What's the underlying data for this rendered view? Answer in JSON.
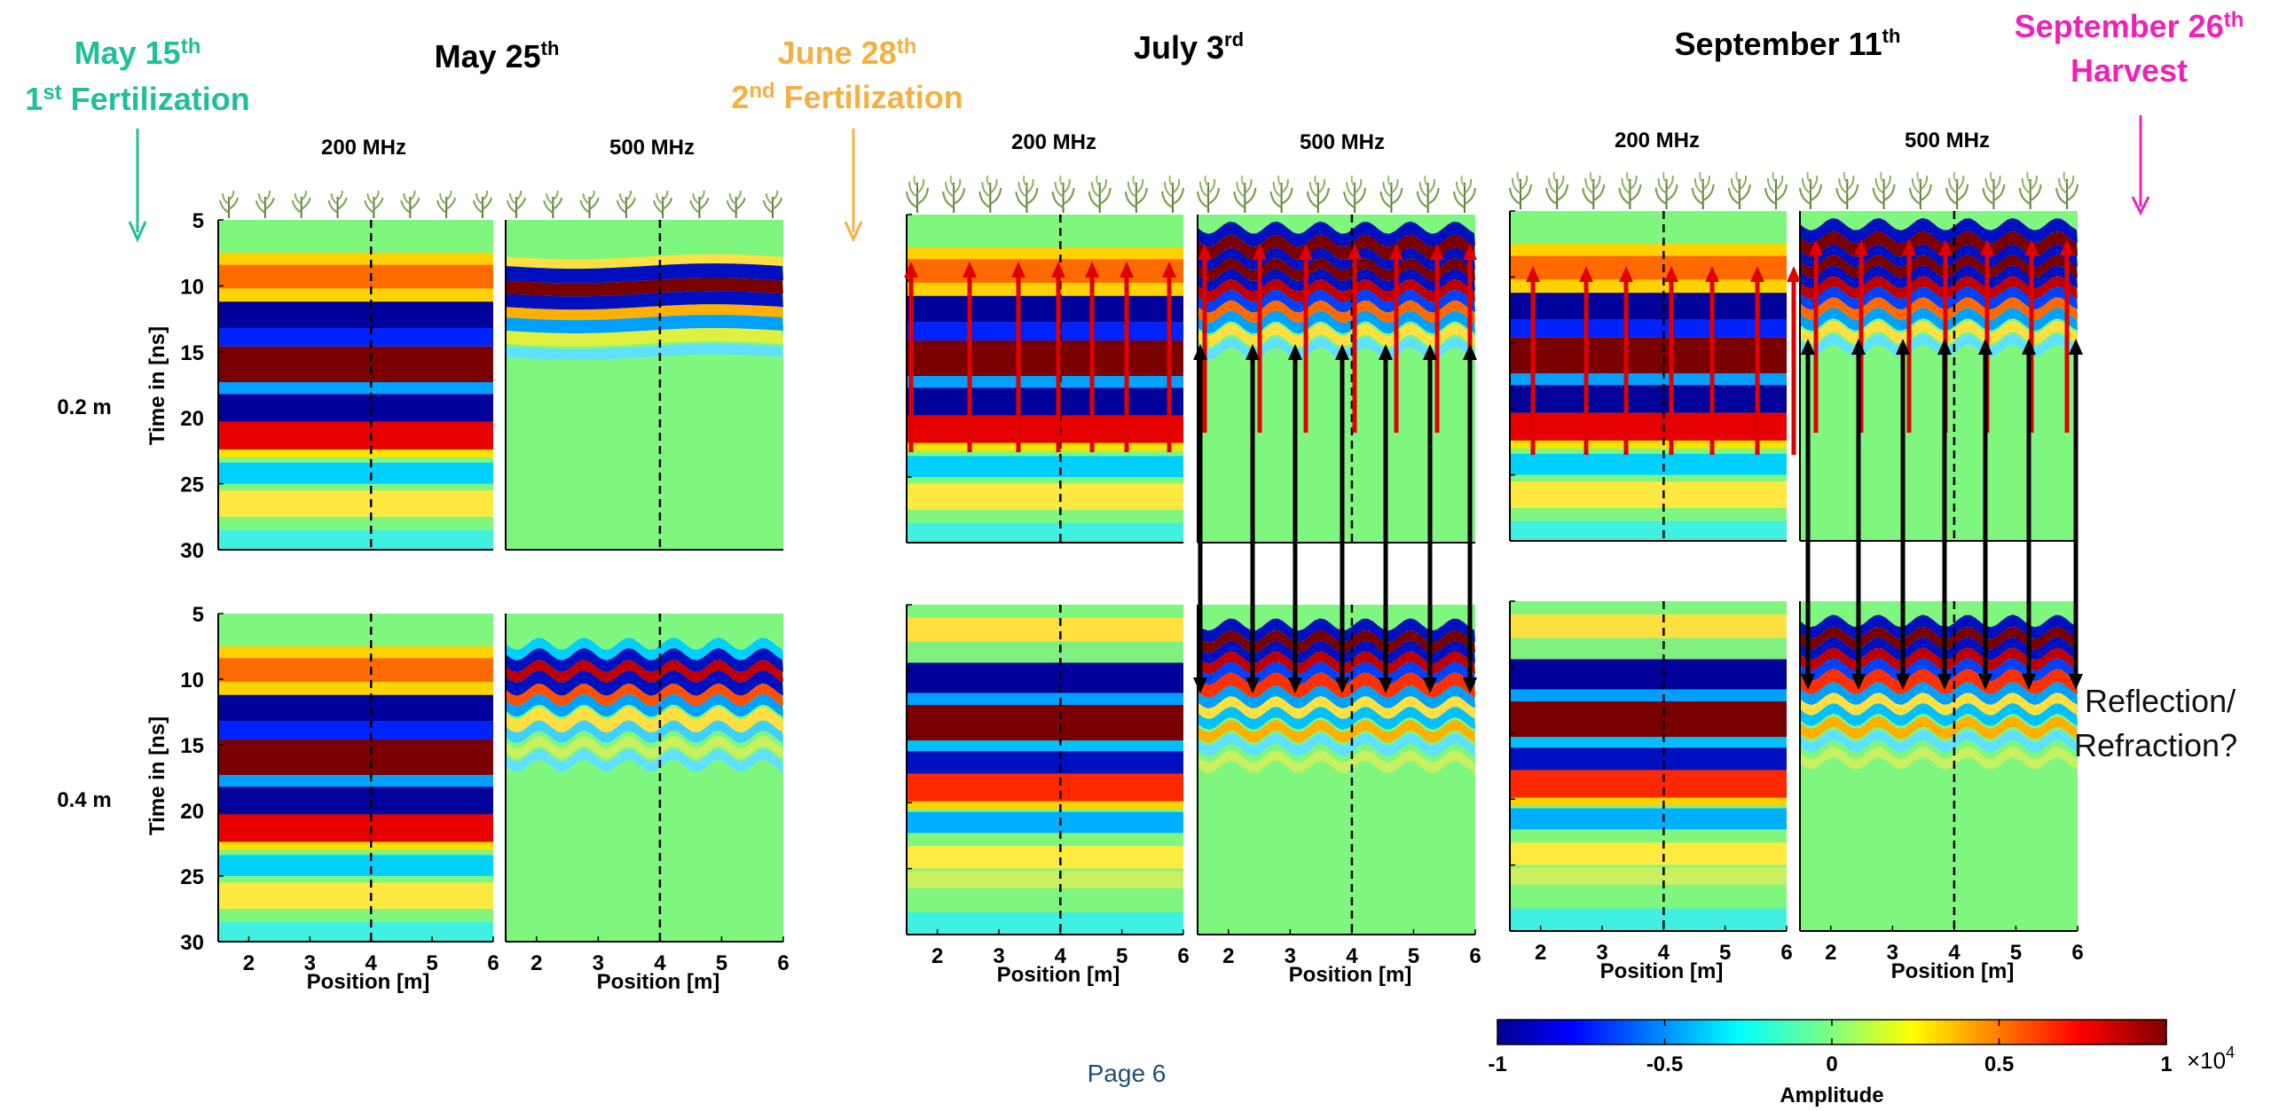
{
  "events": {
    "may15": {
      "line1": "May 15",
      "sup1": "th",
      "line2": "1",
      "sup2": "st",
      "line2b": " Fertilization",
      "color": "#1fbf9a"
    },
    "may25": {
      "text": "May 25",
      "sup": "th"
    },
    "jun28": {
      "line1": "June 28",
      "sup1": "th",
      "line2": "2",
      "sup2": "nd",
      "line2b": " Fertilization",
      "color": "#f5b041"
    },
    "jul3": {
      "text": "July 3",
      "sup": "rd"
    },
    "sep11": {
      "text": "September 11",
      "sup": "th"
    },
    "sep26": {
      "line1": "September 26",
      "sup1": "th",
      "line2": "Harvest",
      "color": "#ee22bb"
    }
  },
  "freq_labels": [
    "200 MHz",
    "500 MHz"
  ],
  "depth_labels": [
    "0.2 m",
    "0.4 m"
  ],
  "annotation": {
    "line1": "Reflection/",
    "line2": "Refraction?"
  },
  "page_label": "Page 6",
  "colorbar": {
    "label": "Amplitude",
    "ticks": [
      "-1",
      "-0.5",
      "0",
      "0.5",
      "1"
    ],
    "multiplier": "×10",
    "exponent": "4"
  },
  "colors": {
    "red_arrow": "#e00000",
    "black_arrow": "#000000",
    "bg_field": "#7ff77f"
  },
  "chart_data": {
    "type": "heatmap",
    "title": "",
    "xlabel": "Position [m]",
    "ylabel": "Time in [ns]",
    "x_ticks": [
      "2",
      "3",
      "4",
      "5",
      "6"
    ],
    "y_ticks": [
      "5",
      "10",
      "15",
      "20",
      "25",
      "30"
    ],
    "xlim": [
      1.5,
      6
    ],
    "ylim": [
      5,
      30
    ],
    "dashed_line_x": 4,
    "colormap": "jet",
    "zlim": [
      -1,
      1
    ],
    "panels": [
      {
        "date": "May 25",
        "frequency": "200 MHz",
        "depth": "0.2 m"
      },
      {
        "date": "May 25",
        "frequency": "500 MHz",
        "depth": "0.2 m"
      },
      {
        "date": "May 25",
        "frequency": "200 MHz",
        "depth": "0.4 m"
      },
      {
        "date": "May 25",
        "frequency": "500 MHz",
        "depth": "0.4 m"
      },
      {
        "date": "July 3",
        "frequency": "200 MHz",
        "depth": "0.2 m"
      },
      {
        "date": "July 3",
        "frequency": "500 MHz",
        "depth": "0.2 m"
      },
      {
        "date": "July 3",
        "frequency": "200 MHz",
        "depth": "0.4 m"
      },
      {
        "date": "July 3",
        "frequency": "500 MHz",
        "depth": "0.4 m"
      },
      {
        "date": "September 11",
        "frequency": "200 MHz",
        "depth": "0.2 m"
      },
      {
        "date": "September 11",
        "frequency": "500 MHz",
        "depth": "0.2 m"
      },
      {
        "date": "September 11",
        "frequency": "200 MHz",
        "depth": "0.4 m"
      },
      {
        "date": "September 11",
        "frequency": "500 MHz",
        "depth": "0.4 m"
      }
    ]
  }
}
